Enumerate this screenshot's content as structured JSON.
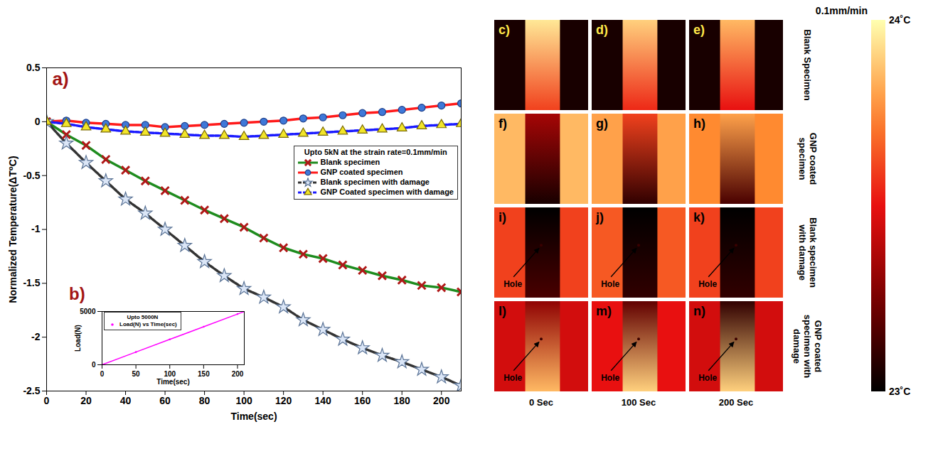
{
  "chart_data": [
    {
      "type": "line",
      "panel_label": "a)",
      "xlabel": "Time(sec)",
      "ylabel": "Normalized Temperature(ΔT⁰C)",
      "legend_title": "Upto 5kN at the strain rate=0.1mm/min",
      "legend": "upper right",
      "grid": false,
      "x": [
        0,
        10,
        20,
        30,
        40,
        50,
        60,
        70,
        80,
        90,
        100,
        110,
        120,
        130,
        140,
        150,
        160,
        170,
        180,
        190,
        200,
        210
      ],
      "xlim": [
        0,
        210
      ],
      "xticks": [
        0,
        20,
        40,
        60,
        80,
        100,
        120,
        140,
        160,
        180,
        200
      ],
      "ylim": [
        -2.5,
        0.5
      ],
      "yticks": [
        -2.5,
        -2,
        -1.5,
        -1,
        -0.5,
        0,
        0.5
      ],
      "series": [
        {
          "name": "Blank specimen",
          "color": "#1e8c1e",
          "marker": "times",
          "line_style": "solid",
          "values": [
            0,
            -0.12,
            -0.22,
            -0.35,
            -0.45,
            -0.55,
            -0.64,
            -0.73,
            -0.82,
            -0.9,
            -0.98,
            -1.08,
            -1.17,
            -1.23,
            -1.27,
            -1.33,
            -1.38,
            -1.43,
            -1.47,
            -1.52,
            -1.54,
            -1.58
          ]
        },
        {
          "name": "GNP coated specimen",
          "color": "#ff1a1a",
          "marker": "circle",
          "line_style": "solid",
          "values": [
            0,
            0.01,
            -0.01,
            -0.02,
            -0.03,
            -0.03,
            -0.05,
            -0.04,
            -0.03,
            -0.02,
            -0.01,
            0,
            0.01,
            0.03,
            0.04,
            0.06,
            0.08,
            0.09,
            0.11,
            0.13,
            0.15,
            0.17
          ]
        },
        {
          "name": "Blank specimen with damage",
          "color": "#333333",
          "marker": "star",
          "line_style": "dashed",
          "values": [
            0,
            -0.2,
            -0.38,
            -0.55,
            -0.72,
            -0.85,
            -1.0,
            -1.15,
            -1.3,
            -1.43,
            -1.55,
            -1.63,
            -1.72,
            -1.84,
            -1.93,
            -2.02,
            -2.1,
            -2.17,
            -2.23,
            -2.3,
            -2.37,
            -2.45
          ]
        },
        {
          "name": "GNP Coated specimen with damage",
          "color": "#1a1aff",
          "marker": "triangle",
          "line_style": "dashed",
          "values": [
            0,
            -0.02,
            -0.05,
            -0.07,
            -0.09,
            -0.1,
            -0.11,
            -0.12,
            -0.13,
            -0.13,
            -0.14,
            -0.13,
            -0.12,
            -0.11,
            -0.1,
            -0.09,
            -0.08,
            -0.07,
            -0.06,
            -0.04,
            -0.03,
            -0.02
          ]
        }
      ]
    },
    {
      "type": "line",
      "panel_label": "b)",
      "title": "Upto 5000N",
      "xlabel": "Time(sec)",
      "ylabel": "Load(N)",
      "legend": "upper left",
      "grid": false,
      "x": [
        0,
        50,
        100,
        150,
        200,
        210
      ],
      "xlim": [
        0,
        210
      ],
      "xticks": [
        0,
        50,
        100,
        150,
        200
      ],
      "ylim": [
        0,
        5000
      ],
      "yticks": [
        0,
        5000
      ],
      "series": [
        {
          "name": "Load(N) vs Time(sec)",
          "color": "#ff00ff",
          "marker": "dot",
          "line_style": "solid",
          "values": [
            0,
            1190,
            2380,
            3570,
            4760,
            5000
          ]
        }
      ]
    },
    {
      "type": "image_grid",
      "title": "0.1mm/min",
      "columns": [
        "0 Sec",
        "100 Sec",
        "200 Sec"
      ],
      "rows": [
        {
          "label": "Blank Specimen",
          "panels": [
            {
              "letter": "c)",
              "background": 23.05,
              "specimen_top": 23.95,
              "specimen_bottom": 23.6
            },
            {
              "letter": "d)",
              "background": 23.05,
              "specimen_top": 23.9,
              "specimen_bottom": 23.55
            },
            {
              "letter": "e)",
              "background": 23.05,
              "specimen_top": 23.85,
              "specimen_bottom": 23.5
            }
          ]
        },
        {
          "label": "GNP coated specimen",
          "panels": [
            {
              "letter": "f)",
              "background": 23.85,
              "specimen_top": 23.35,
              "specimen_bottom": 23.05
            },
            {
              "letter": "g)",
              "background": 23.8,
              "specimen_top": 23.6,
              "specimen_bottom": 23.1
            },
            {
              "letter": "h)",
              "background": 23.75,
              "specimen_top": 23.8,
              "specimen_bottom": 23.15
            }
          ]
        },
        {
          "label": "Blank specimen with damage",
          "panels": [
            {
              "letter": "i)",
              "background": 23.6,
              "specimen_top": 23.0,
              "specimen_bottom": 23.15,
              "annotation": "Hole"
            },
            {
              "letter": "j)",
              "background": 23.65,
              "specimen_top": 23.0,
              "specimen_bottom": 23.1,
              "annotation": "Hole"
            },
            {
              "letter": "k)",
              "background": 23.6,
              "specimen_top": 23.0,
              "specimen_bottom": 23.1,
              "annotation": "Hole"
            }
          ]
        },
        {
          "label": "GNP coated specimen with damage",
          "panels": [
            {
              "letter": "l)",
              "background": 23.45,
              "specimen_top": 23.3,
              "specimen_bottom": 23.85,
              "annotation": "Hole"
            },
            {
              "letter": "m)",
              "background": 23.5,
              "specimen_top": 23.2,
              "specimen_bottom": 23.9,
              "annotation": "Hole"
            },
            {
              "letter": "n)",
              "background": 23.45,
              "specimen_top": 23.1,
              "specimen_bottom": 23.9,
              "annotation": "Hole"
            }
          ]
        }
      ],
      "colorbar": {
        "range": [
          23,
          24
        ],
        "ticks": [
          {
            "value": 24,
            "label": "24˚C"
          },
          {
            "value": 23,
            "label": "23˚C"
          }
        ]
      }
    }
  ]
}
